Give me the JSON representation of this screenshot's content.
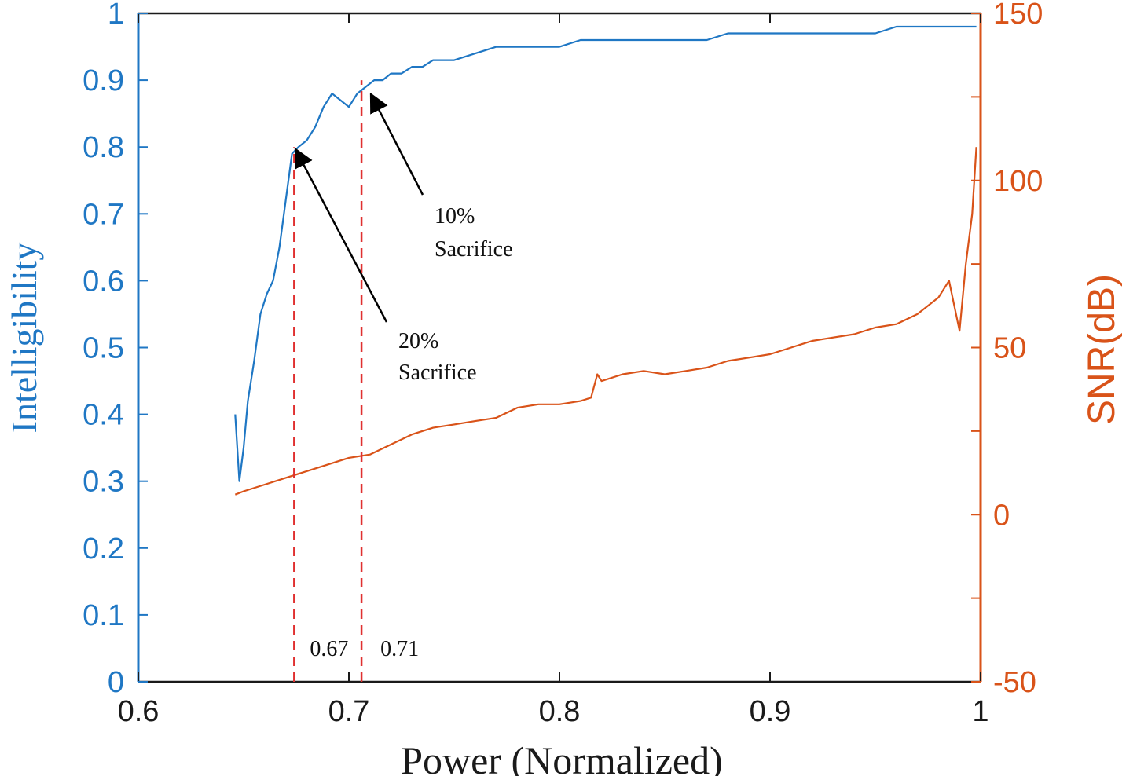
{
  "chart_data": {
    "type": "line",
    "xlabel": "Power (Normalized)",
    "ylabel_left": "Intelligibility",
    "ylabel_right": "SNR(dB)",
    "xlim": [
      0.6,
      1.0
    ],
    "ylim_left": [
      0,
      1
    ],
    "ylim_right": [
      -50,
      150
    ],
    "x_ticks": [
      "0.6",
      "0.7",
      "0.8",
      "0.9",
      "1"
    ],
    "y_left_ticks": [
      "0",
      "0.1",
      "0.2",
      "0.3",
      "0.4",
      "0.5",
      "0.6",
      "0.7",
      "0.8",
      "0.9",
      "1"
    ],
    "y_right_ticks": [
      "-50",
      "0",
      "50",
      "100",
      "150"
    ],
    "colors": {
      "left": "#1f77c4",
      "right": "#d95319",
      "threshold": "#e03030",
      "arrow": "#000000"
    },
    "series": [
      {
        "name": "Intelligibility",
        "axis": "left",
        "x": [
          0.646,
          0.648,
          0.65,
          0.652,
          0.655,
          0.658,
          0.661,
          0.664,
          0.667,
          0.67,
          0.673,
          0.676,
          0.68,
          0.684,
          0.688,
          0.692,
          0.696,
          0.7,
          0.704,
          0.708,
          0.712,
          0.716,
          0.72,
          0.725,
          0.73,
          0.735,
          0.74,
          0.745,
          0.75,
          0.76,
          0.77,
          0.78,
          0.79,
          0.8,
          0.81,
          0.82,
          0.83,
          0.84,
          0.85,
          0.86,
          0.87,
          0.88,
          0.89,
          0.9,
          0.91,
          0.92,
          0.93,
          0.94,
          0.95,
          0.96,
          0.97,
          0.98,
          0.99,
          0.998
        ],
        "values": [
          0.4,
          0.3,
          0.35,
          0.42,
          0.48,
          0.55,
          0.58,
          0.6,
          0.65,
          0.72,
          0.79,
          0.8,
          0.81,
          0.83,
          0.86,
          0.88,
          0.87,
          0.86,
          0.88,
          0.89,
          0.9,
          0.9,
          0.91,
          0.91,
          0.92,
          0.92,
          0.93,
          0.93,
          0.93,
          0.94,
          0.95,
          0.95,
          0.95,
          0.95,
          0.96,
          0.96,
          0.96,
          0.96,
          0.96,
          0.96,
          0.96,
          0.97,
          0.97,
          0.97,
          0.97,
          0.97,
          0.97,
          0.97,
          0.97,
          0.98,
          0.98,
          0.98,
          0.98,
          0.98
        ]
      },
      {
        "name": "SNR(dB)",
        "axis": "right",
        "x": [
          0.646,
          0.65,
          0.66,
          0.67,
          0.68,
          0.69,
          0.7,
          0.71,
          0.72,
          0.73,
          0.74,
          0.75,
          0.76,
          0.77,
          0.78,
          0.79,
          0.8,
          0.81,
          0.815,
          0.818,
          0.82,
          0.83,
          0.84,
          0.85,
          0.86,
          0.87,
          0.88,
          0.89,
          0.9,
          0.91,
          0.92,
          0.93,
          0.94,
          0.95,
          0.96,
          0.97,
          0.98,
          0.985,
          0.99,
          0.993,
          0.996,
          0.998
        ],
        "values": [
          6,
          7,
          9,
          11,
          13,
          15,
          17,
          18,
          21,
          24,
          26,
          27,
          28,
          29,
          32,
          33,
          33,
          34,
          35,
          42,
          40,
          42,
          43,
          42,
          43,
          44,
          46,
          47,
          48,
          50,
          52,
          53,
          54,
          56,
          57,
          60,
          65,
          70,
          55,
          75,
          90,
          110
        ]
      }
    ],
    "thresholds": [
      {
        "x": 0.674,
        "label": "0.67"
      },
      {
        "x": 0.706,
        "label": "0.71"
      }
    ],
    "annotations": [
      {
        "line1": "10%",
        "line2": "Sacrifice"
      },
      {
        "line1": "20%",
        "line2": "Sacrifice"
      }
    ]
  }
}
